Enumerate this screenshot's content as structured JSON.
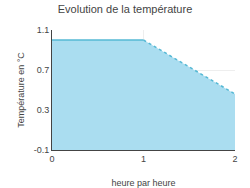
{
  "chart_data": {
    "type": "line",
    "title": "Evolution de la température",
    "xlabel": "heure par heure",
    "ylabel": "Température en °C",
    "x": [
      0,
      1,
      2
    ],
    "series": [
      {
        "type": "area",
        "color": "#aaddf0",
        "values": [
          1.0,
          1.0,
          0.46
        ]
      },
      {
        "type": "line",
        "color": "#55b8d4",
        "line_style": "solid",
        "values": [
          1.0,
          1.0,
          null
        ]
      },
      {
        "type": "line",
        "color": "#55b8d4",
        "line_style": "dotted",
        "values": [
          null,
          1.0,
          0.46
        ]
      }
    ],
    "xlim": [
      0,
      2
    ],
    "ylim": [
      -0.1,
      1.1
    ],
    "xticks": [
      0,
      1,
      2
    ],
    "yticks": [
      -0.1,
      0.3,
      0.7,
      1.1
    ],
    "grid": true
  }
}
